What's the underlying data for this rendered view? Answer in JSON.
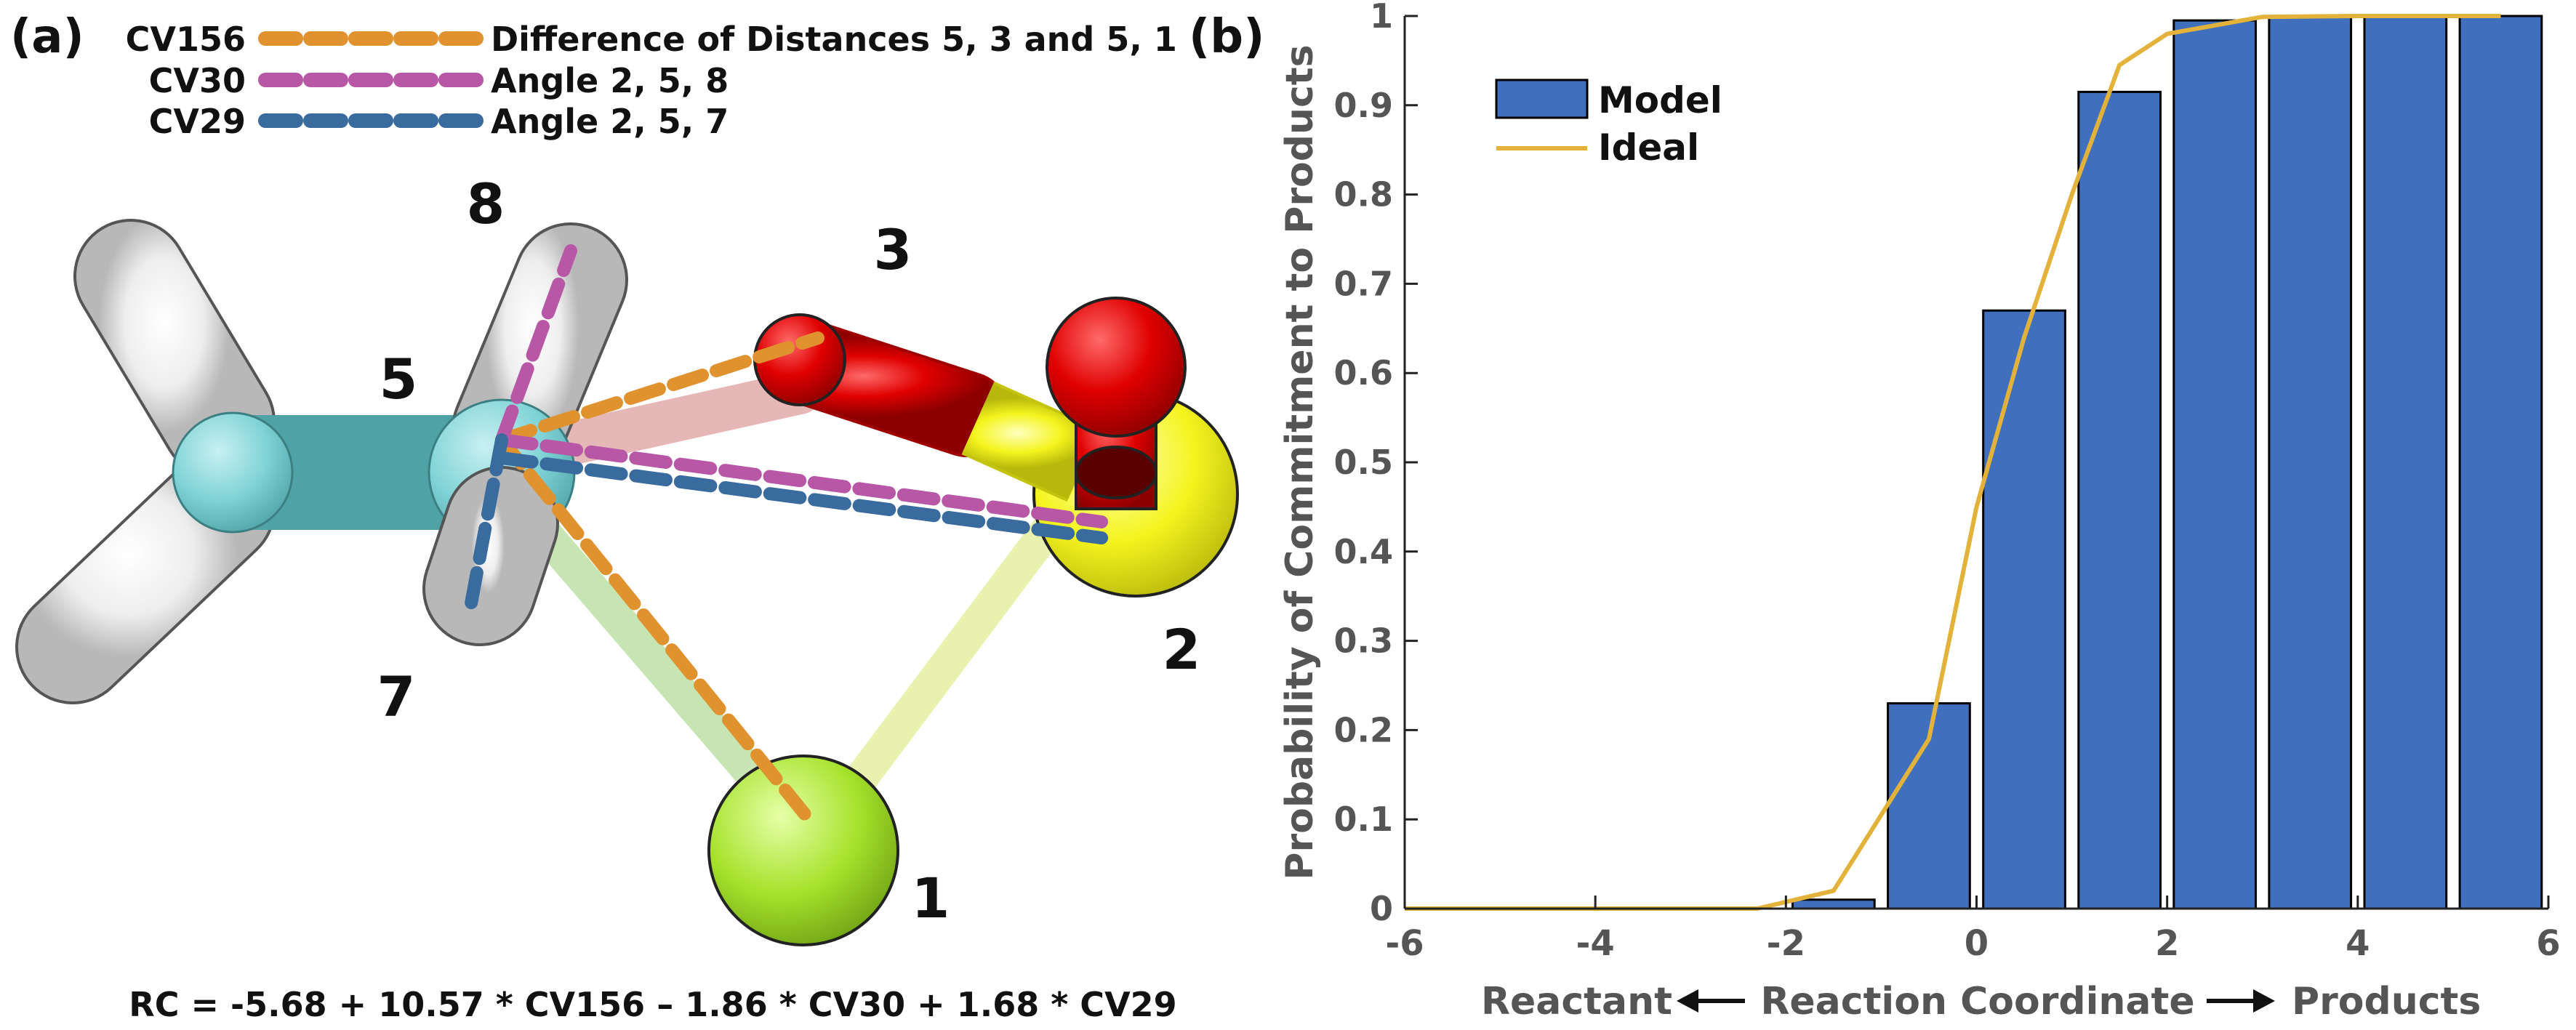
{
  "panel_a": {
    "label": "(a)",
    "legend": [
      {
        "cv": "CV156",
        "desc": "Difference of Distances 5, 3 and 5, 1",
        "color": "#e0922f"
      },
      {
        "cv": "CV30",
        "desc": "Angle 2, 5, 8",
        "color": "#b857a6"
      },
      {
        "cv": "CV29",
        "desc": "Angle 2, 5, 7",
        "color": "#3a6b9e"
      }
    ],
    "atom_labels": {
      "a8": "8",
      "a3": "3",
      "a5": "5",
      "a2": "2",
      "a7": "7",
      "a1": "1"
    },
    "equation": "RC = -5.68 + 10.57 * CV156 – 1.86 * CV30 + 1.68 * CV29",
    "colors": {
      "carbon": "#7fd3d6",
      "hydrogen": "#f4f4f4",
      "oxygen": "#dd0000",
      "sulfur": "#f2f21e",
      "chlorine": "#a6e22b"
    }
  },
  "panel_b": {
    "label": "(b)",
    "xlabel_left": "Reactant",
    "xlabel_center": "Reaction Coordinate",
    "xlabel_right": "Products",
    "colors": {
      "bar": "#3f6fbd",
      "line": "#e2b23b"
    }
  },
  "chart_data": {
    "type": "bar",
    "x": [
      -1.5,
      -0.5,
      0.5,
      1.5,
      2.5,
      3.5,
      4.5,
      5.5
    ],
    "values": [
      0.01,
      0.23,
      0.67,
      0.915,
      0.995,
      1.0,
      1.0,
      1.0
    ],
    "series": [
      {
        "name": "Model",
        "type": "bar",
        "x": [
          -1.5,
          -0.5,
          0.5,
          1.5,
          2.5,
          3.5,
          4.5,
          5.5
        ],
        "values": [
          0.01,
          0.23,
          0.67,
          0.915,
          0.995,
          1.0,
          1.0,
          1.0
        ]
      },
      {
        "name": "Ideal",
        "type": "line",
        "x": [
          -6,
          -2.3,
          -1.5,
          -0.5,
          0,
          0.5,
          1,
          1.5,
          2,
          3,
          4,
          5,
          5.5
        ],
        "values": [
          0,
          0,
          0.02,
          0.19,
          0.45,
          0.64,
          0.8,
          0.945,
          0.98,
          0.999,
          1.0,
          1.0,
          1.0
        ]
      }
    ],
    "title": "",
    "xlabel": "Reaction Coordinate",
    "ylabel": "Probability of Commitment to Products",
    "xlim": [
      -6,
      6
    ],
    "ylim": [
      0,
      1
    ],
    "xticks": [
      -6,
      -4,
      -2,
      0,
      2,
      4,
      6
    ],
    "xtick_labels": [
      "-6",
      "-4",
      "-2",
      "0",
      "2",
      "4",
      "6"
    ],
    "yticks": [
      0,
      0.1,
      0.2,
      0.3,
      0.4,
      0.5,
      0.6,
      0.7,
      0.8,
      0.9,
      1
    ],
    "ytick_labels": [
      "0",
      "0.1",
      "0.2",
      "0.3",
      "0.4",
      "0.5",
      "0.6",
      "0.7",
      "0.8",
      "0.9",
      "1"
    ],
    "grid": false,
    "legend_position": "top-left"
  }
}
